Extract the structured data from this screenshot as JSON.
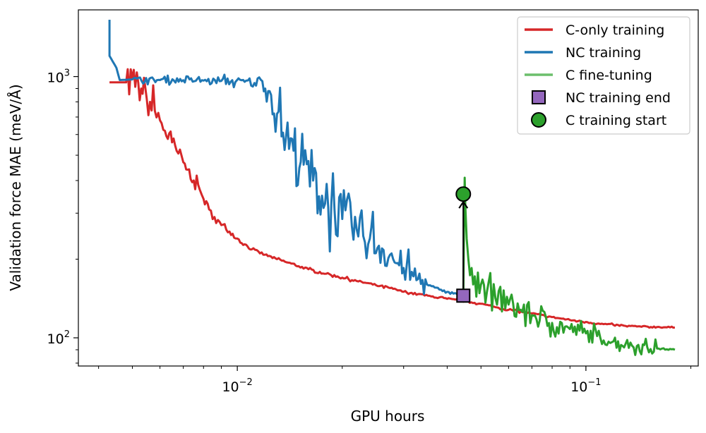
{
  "chart_data": {
    "type": "line",
    "title": "",
    "xlabel": "GPU hours",
    "ylabel": "Validation force MAE (meV/Å)",
    "xscale": "log",
    "yscale": "log",
    "xlim": [
      0.0035,
      0.21
    ],
    "ylim": [
      78,
      1800
    ],
    "grid": false,
    "legend_position": "top-right",
    "x_ticks": [
      {
        "value": 0.01,
        "base": "10",
        "exp": "−2"
      },
      {
        "value": 0.1,
        "base": "10",
        "exp": "−1"
      }
    ],
    "y_ticks": [
      {
        "value": 100,
        "base": "10",
        "exp": "2"
      },
      {
        "value": 1000,
        "base": "10",
        "exp": "3"
      }
    ],
    "series": [
      {
        "name": "C-only training",
        "color": "#d62728",
        "points": [
          [
            0.0043,
            950
          ],
          [
            0.0048,
            950
          ],
          [
            0.0052,
            945
          ],
          [
            0.0053,
            900
          ],
          [
            0.0055,
            820
          ],
          [
            0.0058,
            740
          ],
          [
            0.006,
            680
          ],
          [
            0.0062,
            620
          ],
          [
            0.0065,
            560
          ],
          [
            0.0067,
            520
          ],
          [
            0.007,
            470
          ],
          [
            0.0072,
            440
          ],
          [
            0.0075,
            400
          ],
          [
            0.0078,
            370
          ],
          [
            0.008,
            340
          ],
          [
            0.0083,
            310
          ],
          [
            0.0086,
            290
          ],
          [
            0.009,
            270
          ],
          [
            0.0095,
            255
          ],
          [
            0.01,
            240
          ],
          [
            0.0105,
            228
          ],
          [
            0.011,
            218
          ],
          [
            0.012,
            208
          ],
          [
            0.013,
            200
          ],
          [
            0.014,
            194
          ],
          [
            0.015,
            188
          ],
          [
            0.016,
            183
          ],
          [
            0.018,
            176
          ],
          [
            0.02,
            170
          ],
          [
            0.022,
            165
          ],
          [
            0.025,
            159
          ],
          [
            0.028,
            154
          ],
          [
            0.03,
            150
          ],
          [
            0.033,
            147
          ],
          [
            0.036,
            144
          ],
          [
            0.04,
            141
          ],
          [
            0.045,
            138
          ],
          [
            0.05,
            135
          ],
          [
            0.055,
            131
          ],
          [
            0.06,
            128
          ],
          [
            0.07,
            124
          ],
          [
            0.08,
            120
          ],
          [
            0.09,
            117
          ],
          [
            0.1,
            115
          ],
          [
            0.11,
            113
          ],
          [
            0.12,
            112
          ],
          [
            0.13,
            111
          ],
          [
            0.14,
            110.5
          ],
          [
            0.16,
            110
          ],
          [
            0.18,
            109.5
          ]
        ],
        "noise": [
          0.0,
          0.06,
          0.08,
          0.07,
          0.06,
          0.05,
          0.05,
          0.04,
          0.035,
          0.03,
          0.025,
          0.02,
          0.02,
          0.015,
          0.015,
          0.01,
          0.01,
          0.01,
          0.008,
          0.008,
          0.006,
          0.005,
          0.004,
          0.004,
          0.004,
          0.004,
          0.004,
          0.004,
          0.004,
          0.004,
          0.004
        ]
      },
      {
        "name": "NC training",
        "color": "#1f77b4",
        "points": [
          [
            0.0043,
            1650
          ],
          [
            0.0043,
            1200
          ],
          [
            0.0045,
            1080
          ],
          [
            0.0046,
            970
          ],
          [
            0.005,
            975
          ],
          [
            0.006,
            970
          ],
          [
            0.007,
            968
          ],
          [
            0.008,
            965
          ],
          [
            0.009,
            962
          ],
          [
            0.0105,
            955
          ],
          [
            0.0112,
            945
          ],
          [
            0.0118,
            960
          ],
          [
            0.0125,
            850
          ],
          [
            0.013,
            720
          ],
          [
            0.0138,
            590
          ],
          [
            0.0145,
            520
          ],
          [
            0.0155,
            460
          ],
          [
            0.0165,
            400
          ],
          [
            0.0175,
            350
          ],
          [
            0.019,
            310
          ],
          [
            0.02,
            285
          ],
          [
            0.022,
            260
          ],
          [
            0.024,
            240
          ],
          [
            0.026,
            220
          ],
          [
            0.028,
            200
          ],
          [
            0.03,
            185
          ],
          [
            0.032,
            172
          ],
          [
            0.035,
            160
          ],
          [
            0.038,
            153
          ],
          [
            0.04,
            150
          ],
          [
            0.043,
            147
          ],
          [
            0.0445,
            145
          ]
        ],
        "noise": [
          0.0,
          0.0,
          0.0,
          0.0,
          0.01,
          0.01,
          0.01,
          0.01,
          0.015,
          0.02,
          0.02,
          0.03,
          0.06,
          0.08,
          0.1,
          0.12,
          0.12,
          0.12,
          0.11,
          0.1,
          0.09,
          0.09,
          0.08,
          0.07,
          0.06,
          0.05,
          0.05
        ]
      },
      {
        "name": "C fine-tuning",
        "color": "#2ca02c",
        "points": [
          [
            0.0445,
            145
          ],
          [
            0.0447,
            260
          ],
          [
            0.0449,
            410
          ],
          [
            0.0451,
            320
          ],
          [
            0.0455,
            240
          ],
          [
            0.046,
            200
          ],
          [
            0.047,
            185
          ],
          [
            0.048,
            172
          ],
          [
            0.05,
            160
          ],
          [
            0.052,
            150
          ],
          [
            0.055,
            142
          ],
          [
            0.06,
            134
          ],
          [
            0.065,
            128
          ],
          [
            0.07,
            122
          ],
          [
            0.08,
            114
          ],
          [
            0.09,
            108
          ],
          [
            0.1,
            104
          ],
          [
            0.11,
            100
          ],
          [
            0.12,
            97
          ],
          [
            0.13,
            95
          ],
          [
            0.14,
            93
          ],
          [
            0.15,
            92
          ],
          [
            0.16,
            91
          ],
          [
            0.18,
            90
          ]
        ],
        "noise": [
          0.0,
          0.0,
          0.0,
          0.02,
          0.04,
          0.05,
          0.05,
          0.05,
          0.05,
          0.05,
          0.05,
          0.05,
          0.045,
          0.04,
          0.035,
          0.03,
          0.03,
          0.025,
          0.025,
          0.02,
          0.02,
          0.02
        ]
      }
    ],
    "markers": [
      {
        "name": "NC training end",
        "x": 0.0445,
        "y": 145,
        "shape": "square",
        "color": "#9467bd"
      },
      {
        "name": "C training start",
        "x": 0.0445,
        "y": 355,
        "shape": "circle",
        "color": "#2ca02c"
      }
    ],
    "annotations": [
      {
        "type": "arrow",
        "from": {
          "x": 0.0445,
          "y": 145
        },
        "to": {
          "x": 0.0445,
          "y": 355
        },
        "color": "#000000"
      }
    ]
  }
}
